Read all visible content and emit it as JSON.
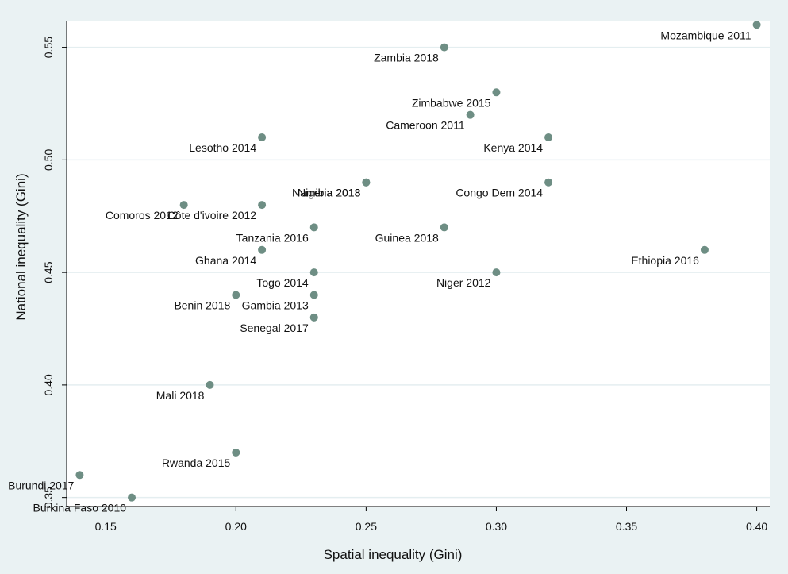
{
  "chart_data": {
    "type": "scatter",
    "title": "",
    "xlabel": "Spatial inequality (Gini)",
    "ylabel": "National inequality (Gini)",
    "xlim": [
      0.135,
      0.405
    ],
    "ylim": [
      0.346,
      0.5615
    ],
    "x_ticks": [
      "0.15",
      "0.20",
      "0.25",
      "0.30",
      "0.35",
      "0.40"
    ],
    "x_tick_values": [
      0.15,
      0.2,
      0.25,
      0.3,
      0.35,
      0.4
    ],
    "y_ticks": [
      "0.35",
      "0.40",
      "0.45",
      "0.50",
      "0.55"
    ],
    "y_tick_values": [
      0.35,
      0.4,
      0.45,
      0.5,
      0.55
    ],
    "grid": "horizontal",
    "colors": {
      "background": "#eaf2f3",
      "plot": "#ffffff",
      "marker": "#6e8e84",
      "grid": "#e4eef0",
      "axis": "#000000"
    },
    "points": [
      {
        "label": "Mozambique 2011",
        "x": 0.4,
        "y": 0.56
      },
      {
        "label": "Zambia 2018",
        "x": 0.28,
        "y": 0.55
      },
      {
        "label": "Zimbabwe 2015",
        "x": 0.3,
        "y": 0.53
      },
      {
        "label": "Cameroon 2011",
        "x": 0.29,
        "y": 0.52
      },
      {
        "label": "Lesotho 2014",
        "x": 0.21,
        "y": 0.51
      },
      {
        "label": "Kenya 2014",
        "x": 0.32,
        "y": 0.51
      },
      {
        "label": "Nigeria 2018",
        "x": 0.25,
        "y": 0.49
      },
      {
        "label": "Namibia 2013",
        "x": 0.25,
        "y": 0.49
      },
      {
        "label": "Congo Dem 2014",
        "x": 0.32,
        "y": 0.49
      },
      {
        "label": "Comoros 2012",
        "x": 0.18,
        "y": 0.48
      },
      {
        "label": "Côte d'ivoire 2012",
        "x": 0.21,
        "y": 0.48
      },
      {
        "label": "Tanzania 2016",
        "x": 0.23,
        "y": 0.47
      },
      {
        "label": "Guinea 2018",
        "x": 0.28,
        "y": 0.47
      },
      {
        "label": "Ghana 2014",
        "x": 0.21,
        "y": 0.46
      },
      {
        "label": "Ethiopia 2016",
        "x": 0.38,
        "y": 0.46
      },
      {
        "label": "Togo 2014",
        "x": 0.23,
        "y": 0.45
      },
      {
        "label": "Niger 2012",
        "x": 0.3,
        "y": 0.45
      },
      {
        "label": "Benin 2018",
        "x": 0.2,
        "y": 0.44
      },
      {
        "label": "Gambia 2013",
        "x": 0.23,
        "y": 0.44
      },
      {
        "label": "Senegal 2017",
        "x": 0.23,
        "y": 0.43
      },
      {
        "label": "Mali 2018",
        "x": 0.19,
        "y": 0.4
      },
      {
        "label": "Rwanda 2015",
        "x": 0.2,
        "y": 0.37
      },
      {
        "label": "Burundi 2017",
        "x": 0.14,
        "y": 0.36
      },
      {
        "label": "Burkina Faso 2010",
        "x": 0.16,
        "y": 0.35
      }
    ]
  }
}
